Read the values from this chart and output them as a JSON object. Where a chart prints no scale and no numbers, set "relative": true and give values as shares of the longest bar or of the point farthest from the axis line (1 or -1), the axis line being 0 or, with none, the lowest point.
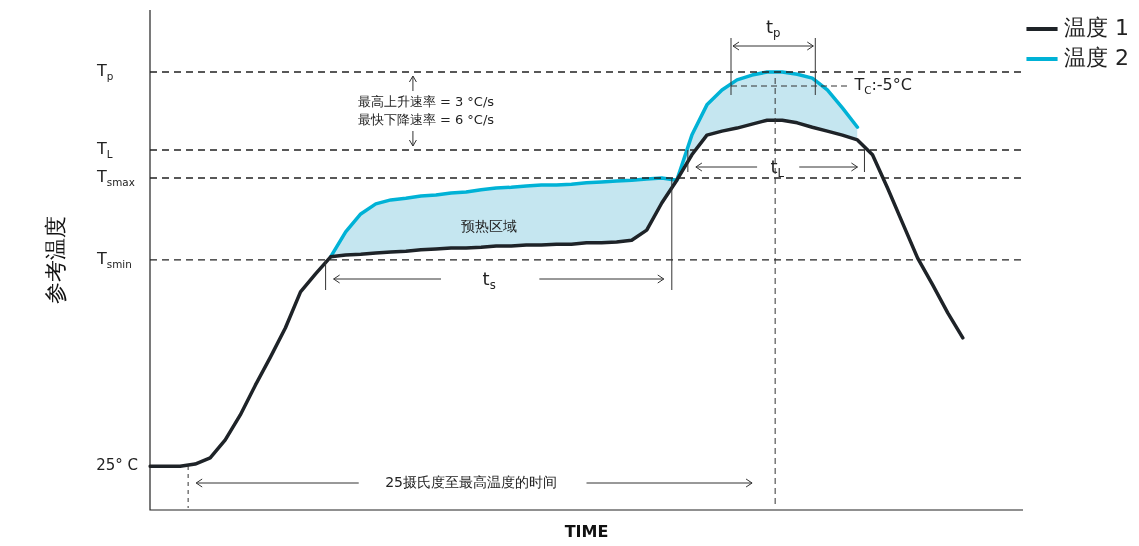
{
  "chart_data": {
    "type": "line",
    "relative": true,
    "xlabel": "TIME",
    "ylabel": "参考温度",
    "legend": "top right",
    "marker": "none",
    "categories": [
      null,
      null,
      null,
      null,
      null,
      null,
      null,
      null,
      null,
      null,
      null,
      null,
      null,
      null,
      null,
      null,
      null,
      null,
      null,
      null,
      null,
      null,
      null,
      null,
      null,
      null,
      null,
      null,
      null,
      null,
      null,
      null,
      null,
      null,
      null,
      null,
      null,
      null,
      null,
      null,
      null,
      null,
      null,
      null,
      null,
      null,
      null,
      null,
      null,
      null,
      null,
      null,
      null,
      null,
      null,
      null,
      null,
      null,
      null
    ],
    "series": [
      {
        "name": "温度 1",
        "color": "#1e2328",
        "values": [
          0.1,
          0.1,
          0.1,
          0.105,
          0.119,
          0.16,
          0.217,
          0.285,
          0.349,
          0.416,
          0.498,
          0.539,
          0.578,
          0.582,
          0.584,
          0.587,
          0.589,
          0.591,
          0.594,
          0.596,
          0.598,
          0.598,
          0.6,
          0.603,
          0.603,
          0.605,
          0.605,
          0.607,
          0.607,
          0.61,
          0.61,
          0.612,
          0.616,
          0.639,
          0.701,
          0.753,
          0.811,
          0.856,
          0.865,
          0.872,
          0.881,
          0.89,
          0.89,
          0.884,
          0.874,
          0.865,
          0.856,
          0.845,
          0.811,
          0.735,
          0.655,
          0.575,
          0.514,
          0.45,
          0.393,
          null,
          null,
          null,
          null
        ]
      },
      {
        "name": "温度 2",
        "color": "#00b2d6",
        "values": [
          null,
          null,
          null,
          null,
          null,
          null,
          null,
          null,
          null,
          null,
          null,
          null,
          0.578,
          0.635,
          0.676,
          0.699,
          0.708,
          0.712,
          0.717,
          0.719,
          0.724,
          0.726,
          0.731,
          0.735,
          0.737,
          0.74,
          0.742,
          0.742,
          0.744,
          0.747,
          0.749,
          0.751,
          0.753,
          0.756,
          0.758,
          0.753,
          0.856,
          0.925,
          0.959,
          0.982,
          0.993,
          1.0,
          1.0,
          0.995,
          0.986,
          0.959,
          0.918,
          0.874,
          null,
          null,
          null,
          null,
          null,
          null,
          null,
          null,
          null,
          null,
          null
        ]
      }
    ],
    "ref_lines": [
      {
        "axis": "y",
        "value": 1.0,
        "label": "T$_{p}$",
        "line_style": "dashed"
      },
      {
        "axis": "y",
        "value": 0.822,
        "label": "T$_{L}$",
        "line_style": "dashed"
      },
      {
        "axis": "y",
        "value": 0.758,
        "label": "T$_{smax}$",
        "line_style": "dashed"
      },
      {
        "axis": "y",
        "value": 0.571,
        "label": "T$_{smin}$",
        "line_style": "dashed"
      }
    ],
    "annotations": [
      "最高上升速率 = 3 °C/s",
      "最快下降速率 = 6 °C/s",
      "预热区域",
      "t$_{s}$",
      "t$_{L}$",
      "t$_{p}$",
      "T$_{C}$:-5°C",
      "25摄氏度至最高温度的时间",
      "25° C"
    ]
  }
}
